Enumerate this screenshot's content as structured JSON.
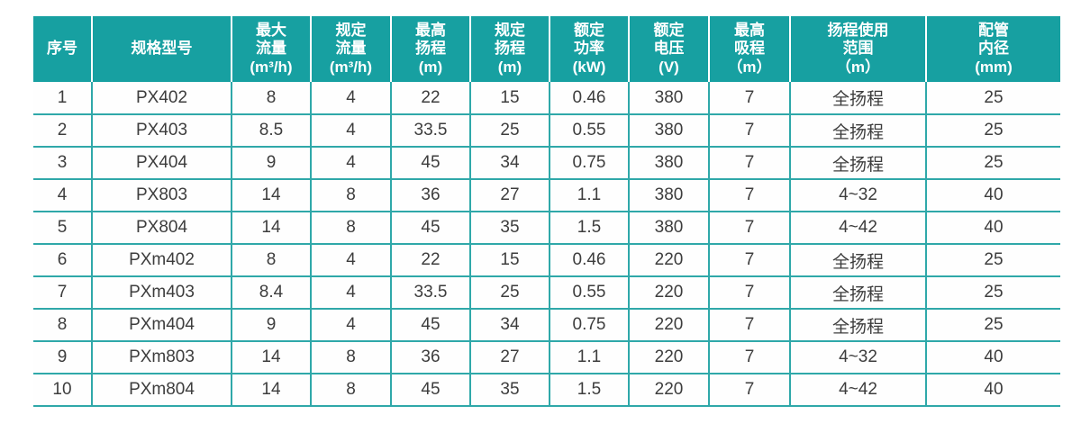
{
  "theme": {
    "header_bg": "#17a0a1",
    "header_text": "#ffffff",
    "grid_line": "#2fa8a9",
    "cell_text": "#3d3d3d",
    "page_bg": "#ffffff"
  },
  "table": {
    "columns": [
      {
        "id": "index",
        "label": "序号"
      },
      {
        "id": "model",
        "label": "规格型号"
      },
      {
        "id": "max-flow",
        "label": "最大\n流量\n(m³/h)"
      },
      {
        "id": "rated-flow",
        "label": "规定\n流量\n(m³/h)"
      },
      {
        "id": "max-head",
        "label": "最高\n扬程\n(m)"
      },
      {
        "id": "rated-head",
        "label": "规定\n扬程\n(m)"
      },
      {
        "id": "rated-power",
        "label": "额定\n功率\n(kW)"
      },
      {
        "id": "rated-volt",
        "label": "额定\n电压\n(V)"
      },
      {
        "id": "max-suction",
        "label": "最高\n吸程\n（m）"
      },
      {
        "id": "head-range",
        "label": "扬程使用\n范围\n（m）"
      },
      {
        "id": "pipe-bore",
        "label": "配管\n内径\n(mm)"
      }
    ],
    "rows": [
      [
        "1",
        "PX402",
        "8",
        "4",
        "22",
        "15",
        "0.46",
        "380",
        "7",
        "全扬程",
        "25"
      ],
      [
        "2",
        "PX403",
        "8.5",
        "4",
        "33.5",
        "25",
        "0.55",
        "380",
        "7",
        "全扬程",
        "25"
      ],
      [
        "3",
        "PX404",
        "9",
        "4",
        "45",
        "34",
        "0.75",
        "380",
        "7",
        "全扬程",
        "25"
      ],
      [
        "4",
        "PX803",
        "14",
        "8",
        "36",
        "27",
        "1.1",
        "380",
        "7",
        "4~32",
        "40"
      ],
      [
        "5",
        "PX804",
        "14",
        "8",
        "45",
        "35",
        "1.5",
        "380",
        "7",
        "4~42",
        "40"
      ],
      [
        "6",
        "PXm402",
        "8",
        "4",
        "22",
        "15",
        "0.46",
        "220",
        "7",
        "全扬程",
        "25"
      ],
      [
        "7",
        "PXm403",
        "8.4",
        "4",
        "33.5",
        "25",
        "0.55",
        "220",
        "7",
        "全扬程",
        "25"
      ],
      [
        "8",
        "PXm404",
        "9",
        "4",
        "45",
        "34",
        "0.75",
        "220",
        "7",
        "全扬程",
        "25"
      ],
      [
        "9",
        "PXm803",
        "14",
        "8",
        "36",
        "27",
        "1.1",
        "220",
        "7",
        "4~32",
        "40"
      ],
      [
        "10",
        "PXm804",
        "14",
        "8",
        "45",
        "35",
        "1.5",
        "220",
        "7",
        "4~42",
        "40"
      ]
    ]
  }
}
